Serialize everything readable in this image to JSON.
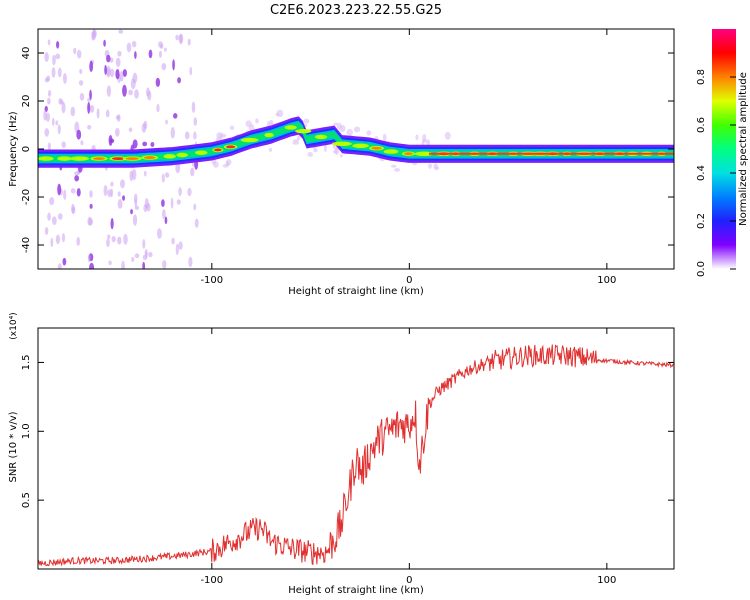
{
  "title": "C2E6.2023.223.22.55.G25",
  "chart_data": [
    {
      "type": "heatmap",
      "xlabel": "Height of straight line (km)",
      "ylabel": "Frequency (Hz)",
      "xlim": [
        -188,
        134
      ],
      "ylim": [
        -50,
        50
      ],
      "xticks": [
        -100,
        0,
        100
      ],
      "yticks": [
        -40,
        -20,
        0,
        20,
        40
      ],
      "ridge": [
        {
          "x": -188,
          "y": -4
        },
        {
          "x": -160,
          "y": -4
        },
        {
          "x": -140,
          "y": -4
        },
        {
          "x": -120,
          "y": -3
        },
        {
          "x": -100,
          "y": -1
        },
        {
          "x": -90,
          "y": 1
        },
        {
          "x": -80,
          "y": 4
        },
        {
          "x": -70,
          "y": 6
        },
        {
          "x": -60,
          "y": 9
        },
        {
          "x": -55,
          "y": 10
        },
        {
          "x": -52,
          "y": 4
        },
        {
          "x": -45,
          "y": 5
        },
        {
          "x": -38,
          "y": 6
        },
        {
          "x": -34,
          "y": 2
        },
        {
          "x": -20,
          "y": 1
        },
        {
          "x": -10,
          "y": -1
        },
        {
          "x": 0,
          "y": -2
        },
        {
          "x": 20,
          "y": -2
        },
        {
          "x": 60,
          "y": -2
        },
        {
          "x": 100,
          "y": -2
        },
        {
          "x": 134,
          "y": -2
        }
      ],
      "colorbar": {
        "label": "Normalized spectral amplitude",
        "range": [
          0,
          1
        ],
        "ticks": [
          "0.0",
          "0.2",
          "0.4",
          "0.6",
          "0.8"
        ],
        "tick_values": [
          0,
          0.2,
          0.4,
          0.6,
          0.8
        ]
      },
      "grid": false
    },
    {
      "type": "line",
      "xlabel": "Height of straight line (km)",
      "ylabel": "SNR (10 * v/v)",
      "multiplier": "(x10⁴)",
      "xlim": [
        -188,
        134
      ],
      "ylim": [
        0,
        1.75
      ],
      "xticks": [
        -100,
        0,
        100
      ],
      "yticks": [
        0.5,
        1.0,
        1.5
      ],
      "ytick_labels": [
        "0.5",
        "1.0",
        "1.5"
      ],
      "color": "#e03030",
      "series": [
        {
          "x": [
            -188,
            -170,
            -150,
            -130,
            -115,
            -100,
            -90,
            -80,
            -75,
            -70,
            -60,
            -50,
            -42,
            -35,
            -30,
            -27,
            -24,
            -20,
            -15,
            -10,
            -5,
            0,
            3,
            5,
            10,
            15,
            20,
            25,
            30,
            40,
            50,
            60,
            70,
            80,
            90,
            95,
            110,
            134
          ],
          "y": [
            0.04,
            0.06,
            0.06,
            0.08,
            0.1,
            0.13,
            0.2,
            0.28,
            0.3,
            0.2,
            0.15,
            0.12,
            0.12,
            0.3,
            0.6,
            0.8,
            0.7,
            0.85,
            0.95,
            1.0,
            1.05,
            1.05,
            1.15,
            0.75,
            1.2,
            1.3,
            1.35,
            1.4,
            1.45,
            1.5,
            1.53,
            1.55,
            1.55,
            1.55,
            1.53,
            1.52,
            1.5,
            1.48
          ]
        }
      ],
      "grid": false
    }
  ]
}
